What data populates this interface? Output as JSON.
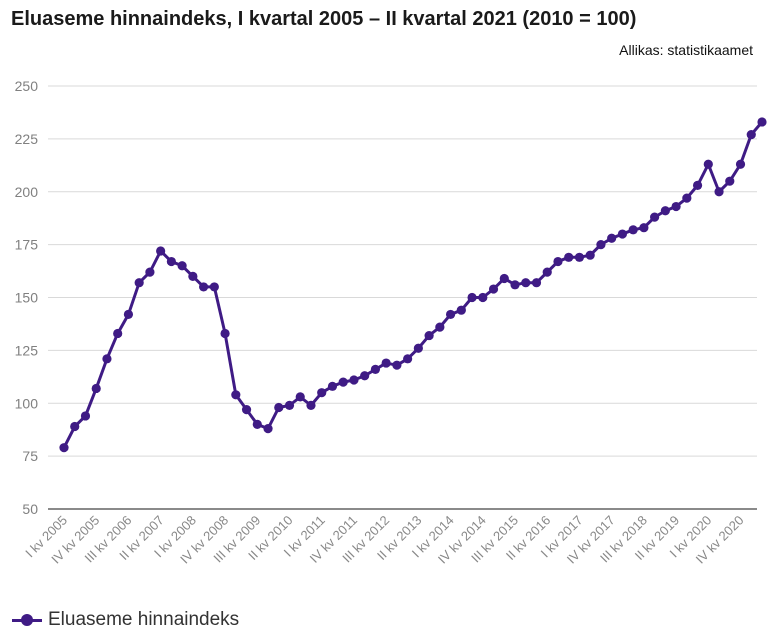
{
  "chart_data": {
    "type": "line",
    "title": "Eluaseme hinnaindeks, I kvartal 2005 – II kvartal 2021 (2010 = 100)",
    "source": "Allikas: statistikaamet",
    "xlabel": "",
    "ylabel": "",
    "ylim": [
      50,
      250
    ],
    "yticks": [
      50,
      75,
      100,
      125,
      150,
      175,
      200,
      225,
      250
    ],
    "grid": true,
    "legend_position": "bottom-left",
    "categories": [
      "I kv 2005",
      "II kv 2005",
      "III kv 2005",
      "IV kv 2005",
      "I kv 2006",
      "II kv 2006",
      "III kv 2006",
      "IV kv 2006",
      "I kv 2007",
      "II kv 2007",
      "III kv 2007",
      "IV kv 2007",
      "I kv 2008",
      "II kv 2008",
      "III kv 2008",
      "IV kv 2008",
      "I kv 2009",
      "II kv 2009",
      "III kv 2009",
      "IV kv 2009",
      "I kv 2010",
      "II kv 2010",
      "III kv 2010",
      "IV kv 2010",
      "I kv 2011",
      "II kv 2011",
      "III kv 2011",
      "IV kv 2011",
      "I kv 2012",
      "II kv 2012",
      "III kv 2012",
      "IV kv 2012",
      "I kv 2013",
      "II kv 2013",
      "III kv 2013",
      "IV kv 2013",
      "I kv 2014",
      "II kv 2014",
      "III kv 2014",
      "IV kv 2014",
      "I kv 2015",
      "II kv 2015",
      "III kv 2015",
      "IV kv 2015",
      "I kv 2016",
      "II kv 2016",
      "III kv 2016",
      "IV kv 2016",
      "I kv 2017",
      "II kv 2017",
      "III kv 2017",
      "IV kv 2017",
      "I kv 2018",
      "II kv 2018",
      "III kv 2018",
      "IV kv 2018",
      "I kv 2019",
      "II kv 2019",
      "III kv 2019",
      "IV kv 2019",
      "I kv 2020",
      "II kv 2020",
      "III kv 2020",
      "IV kv 2020",
      "I kv 2021",
      "II kv 2021"
    ],
    "tick_labels": [
      "I kv 2005",
      "IV kv 2005",
      "III kv 2006",
      "II kv 2007",
      "I kv 2008",
      "IV kv 2008",
      "III kv 2009",
      "II kv 2010",
      "I kv 2011",
      "IV kv 2011",
      "III kv 2012",
      "II kv 2013",
      "I kv 2014",
      "IV kv 2014",
      "III kv 2015",
      "II kv 2016",
      "I kv 2017",
      "IV kv 2017",
      "III kv 2018",
      "II kv 2019",
      "I kv 2020",
      "IV kv 2020"
    ],
    "series": [
      {
        "name": "Eluaseme hinnaindeks",
        "color": "#3f1b85",
        "values": [
          79,
          89,
          94,
          107,
          121,
          133,
          142,
          157,
          162,
          172,
          167,
          165,
          160,
          155,
          155,
          133,
          104,
          97,
          90,
          88,
          98,
          99,
          103,
          99,
          105,
          108,
          110,
          111,
          113,
          116,
          119,
          118,
          121,
          126,
          132,
          136,
          142,
          144,
          150,
          150,
          154,
          159,
          156,
          157,
          157,
          162,
          167,
          169,
          169,
          170,
          175,
          178,
          180,
          182,
          183,
          188,
          191,
          193,
          197,
          203,
          213,
          200,
          205,
          213,
          227,
          233
        ]
      }
    ]
  }
}
